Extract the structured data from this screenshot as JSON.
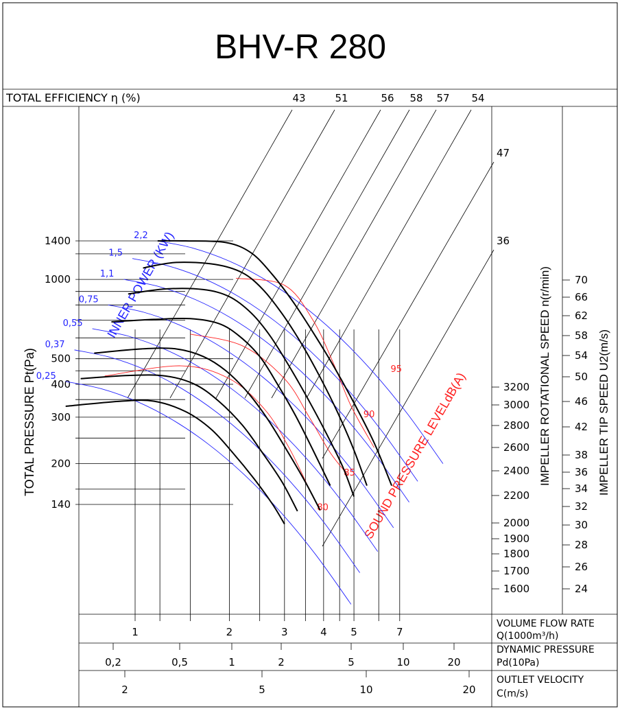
{
  "chart_data": {
    "type": "line",
    "title": "BHV-R 280",
    "efficiency": {
      "label": "TOTAL EFFICIENCY η (%)",
      "values": [
        "43",
        "51",
        "56",
        "58",
        "57",
        "54",
        "47",
        "36"
      ]
    },
    "y_axis": {
      "label": "TOTAL PRESSURE Pt(Pa)",
      "scale": "log",
      "ticks": [
        "1400",
        "1000",
        "500",
        "400",
        "300",
        "200",
        "140"
      ]
    },
    "x_axis": {
      "label": "VOLUME FLOW RATE",
      "unit": "Q(1000m³/h)",
      "scale": "log",
      "ticks": [
        "1",
        "2",
        "3",
        "4",
        "5",
        "7"
      ]
    },
    "dynamic_pressure": {
      "label": "DYNAMIC PRESSURE",
      "unit": "Pd(10Pa)",
      "ticks": [
        "0,2",
        "0,5",
        "1",
        "2",
        "5",
        "10",
        "20"
      ]
    },
    "outlet_velocity": {
      "label": "OUTLET VELOCITY",
      "unit": "C(m/s)",
      "ticks": [
        "2",
        "5",
        "10",
        "20"
      ]
    },
    "rotational_speed": {
      "label": "IMPELLER ROTATIONAL SPEED n(r/min)",
      "ticks": [
        "3200",
        "3000",
        "2800",
        "2600",
        "2400",
        "2200",
        "2000",
        "1900",
        "1800",
        "1700",
        "1600"
      ]
    },
    "tip_speed": {
      "label": "IMPELLER TIP SPEED U2(m/s)",
      "ticks": [
        "70",
        "66",
        "62",
        "58",
        "54",
        "50",
        "46",
        "42",
        "38",
        "36",
        "34",
        "32",
        "30",
        "28",
        "26",
        "24"
      ]
    },
    "inner_power": {
      "label": "INNER POWER (KW)",
      "values": [
        "2,2",
        "1,5",
        "1,1",
        "0,75",
        "0,55",
        "0,37",
        "0,25"
      ]
    },
    "sound_pressure": {
      "label": "SOUND PRESSURE LEVELdB(A)",
      "values": [
        "95",
        "90",
        "85",
        "80"
      ]
    },
    "series": [
      {
        "points": [
          [
            1.18,
            1400
          ],
          [
            1.45,
            1400
          ],
          [
            1.95,
            1380
          ],
          [
            2.35,
            1260
          ],
          [
            2.75,
            1040
          ],
          [
            3.2,
            820
          ],
          [
            3.7,
            630
          ],
          [
            4.3,
            470
          ],
          [
            5.0,
            340
          ],
          [
            5.8,
            240
          ],
          [
            6.6,
            165
          ]
        ]
      },
      {
        "points": [
          [
            1.06,
            1105
          ],
          [
            1.35,
            1160
          ],
          [
            1.8,
            1140
          ],
          [
            2.2,
            1060
          ],
          [
            2.55,
            920
          ],
          [
            2.95,
            740
          ],
          [
            3.4,
            570
          ],
          [
            3.9,
            425
          ],
          [
            4.45,
            310
          ],
          [
            5.0,
            225
          ],
          [
            5.5,
            165
          ]
        ]
      },
      {
        "points": [
          [
            0.95,
            880
          ],
          [
            1.25,
            920
          ],
          [
            1.65,
            915
          ],
          [
            2.0,
            860
          ],
          [
            2.35,
            745
          ],
          [
            2.7,
            610
          ],
          [
            3.1,
            470
          ],
          [
            3.55,
            355
          ],
          [
            4.05,
            265
          ],
          [
            4.6,
            195
          ],
          [
            5.0,
            150
          ]
        ]
      },
      {
        "points": [
          [
            0.84,
            690
          ],
          [
            1.15,
            705
          ],
          [
            1.5,
            710
          ],
          [
            1.85,
            680
          ],
          [
            2.15,
            610
          ],
          [
            2.5,
            510
          ],
          [
            2.85,
            400
          ],
          [
            3.25,
            305
          ],
          [
            3.7,
            225
          ],
          [
            4.2,
            165
          ]
        ]
      },
      {
        "points": [
          [
            0.74,
            525
          ],
          [
            1.05,
            545
          ],
          [
            1.35,
            545
          ],
          [
            1.65,
            510
          ],
          [
            1.95,
            450
          ],
          [
            2.3,
            370
          ],
          [
            2.65,
            295
          ],
          [
            3.05,
            225
          ],
          [
            3.5,
            170
          ],
          [
            3.9,
            133
          ]
        ]
      },
      {
        "points": [
          [
            0.67,
            420
          ],
          [
            0.95,
            432
          ],
          [
            1.25,
            430
          ],
          [
            1.55,
            400
          ],
          [
            1.85,
            345
          ],
          [
            2.2,
            280
          ],
          [
            2.55,
            220
          ],
          [
            2.95,
            170
          ],
          [
            3.3,
            132
          ]
        ]
      },
      {
        "points": [
          [
            0.6,
            330
          ],
          [
            0.9,
            345
          ],
          [
            1.15,
            345
          ],
          [
            1.45,
            315
          ],
          [
            1.75,
            270
          ],
          [
            2.05,
            220
          ],
          [
            2.4,
            175
          ],
          [
            2.75,
            140
          ],
          [
            3.0,
            118
          ]
        ]
      }
    ]
  }
}
